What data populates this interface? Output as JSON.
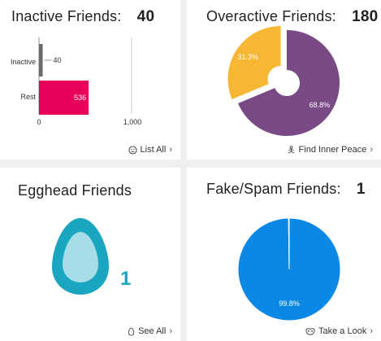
{
  "cards": {
    "inactive": {
      "title": "Inactive Friends:",
      "count": "40",
      "link_label": "List All",
      "link_icon": "smiley-icon"
    },
    "overactive": {
      "title": "Overactive Friends:",
      "count": "180",
      "link_label": "Find Inner Peace",
      "link_icon": "meditation-icon"
    },
    "egghead": {
      "title": "Egghead Friends",
      "count": "1",
      "link_label": "See All",
      "link_icon": "egg-icon"
    },
    "fake": {
      "title": "Fake/Spam Friends:",
      "count": "1",
      "link_label": "Take a Look",
      "link_icon": "mask-icon"
    }
  },
  "colors": {
    "inactive_bar": "#6b6b6b",
    "rest_bar": "#e8005a",
    "overactive_main": "#7a4a87",
    "overactive_minor": "#f7b733",
    "egg_outer": "#1aa6c0",
    "egg_inner": "#a6dde6",
    "fake_pie": "#0a88e6"
  },
  "chart_data": [
    {
      "type": "bar",
      "orientation": "horizontal",
      "categories": [
        "Inactive",
        "Rest"
      ],
      "values": [
        40,
        536
      ],
      "value_labels": [
        "40",
        "536"
      ],
      "x_ticks": [
        "0",
        "1,000"
      ],
      "xlim": [
        0,
        1000
      ]
    },
    {
      "type": "pie",
      "labels": [
        "68.8%",
        "31.3%"
      ],
      "values": [
        68.8,
        31.3
      ]
    },
    {
      "type": "pie",
      "labels": [
        "99.8%",
        ""
      ],
      "values": [
        99.8,
        0.2
      ]
    }
  ]
}
